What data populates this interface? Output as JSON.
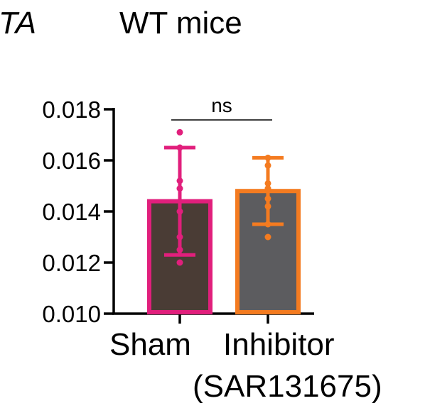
{
  "panel_label": "TA",
  "title": "WT mice",
  "chart_data": {
    "type": "bar",
    "categories": [
      "Sham",
      "Inhibitor"
    ],
    "category_sublabels": [
      "",
      "(SAR131675)"
    ],
    "values": [
      0.0144,
      0.0148
    ],
    "error_upper": [
      0.0165,
      0.0161
    ],
    "error_lower": [
      0.0123,
      0.0135
    ],
    "points": [
      [
        0.0171,
        0.0165,
        0.0152,
        0.0149,
        0.014,
        0.013,
        0.0125,
        0.012
      ],
      [
        0.0161,
        0.0158,
        0.0151,
        0.0149,
        0.0145,
        0.0142,
        0.0135,
        0.013
      ]
    ],
    "bar_fill": [
      "#4a3c35",
      "#5c5c5f"
    ],
    "bar_stroke": [
      "#e11f7c",
      "#f47b20"
    ],
    "ylim": [
      0.01,
      0.018
    ],
    "yticks": [
      "0.010",
      "0.012",
      "0.014",
      "0.016",
      "0.018"
    ],
    "annotation": "ns",
    "xlabel": "",
    "ylabel": ""
  }
}
